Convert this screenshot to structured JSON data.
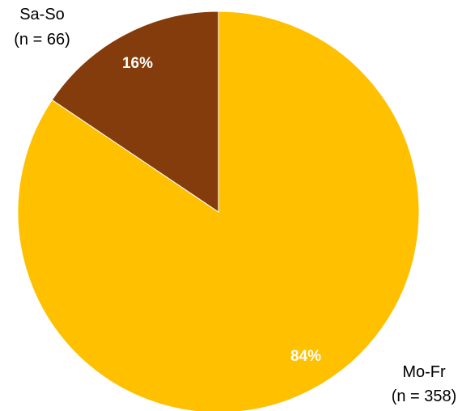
{
  "chart_data": {
    "type": "pie",
    "title": "",
    "slices": [
      {
        "name": "Mo-Fr",
        "count_label": "(n = 358)",
        "value": 358,
        "percent_label": "84%",
        "color": "#FFC000"
      },
      {
        "name": "Sa-So",
        "count_label": "(n = 66)",
        "value": 66,
        "percent_label": "16%",
        "color": "#843C0C"
      }
    ],
    "legend": "none"
  }
}
